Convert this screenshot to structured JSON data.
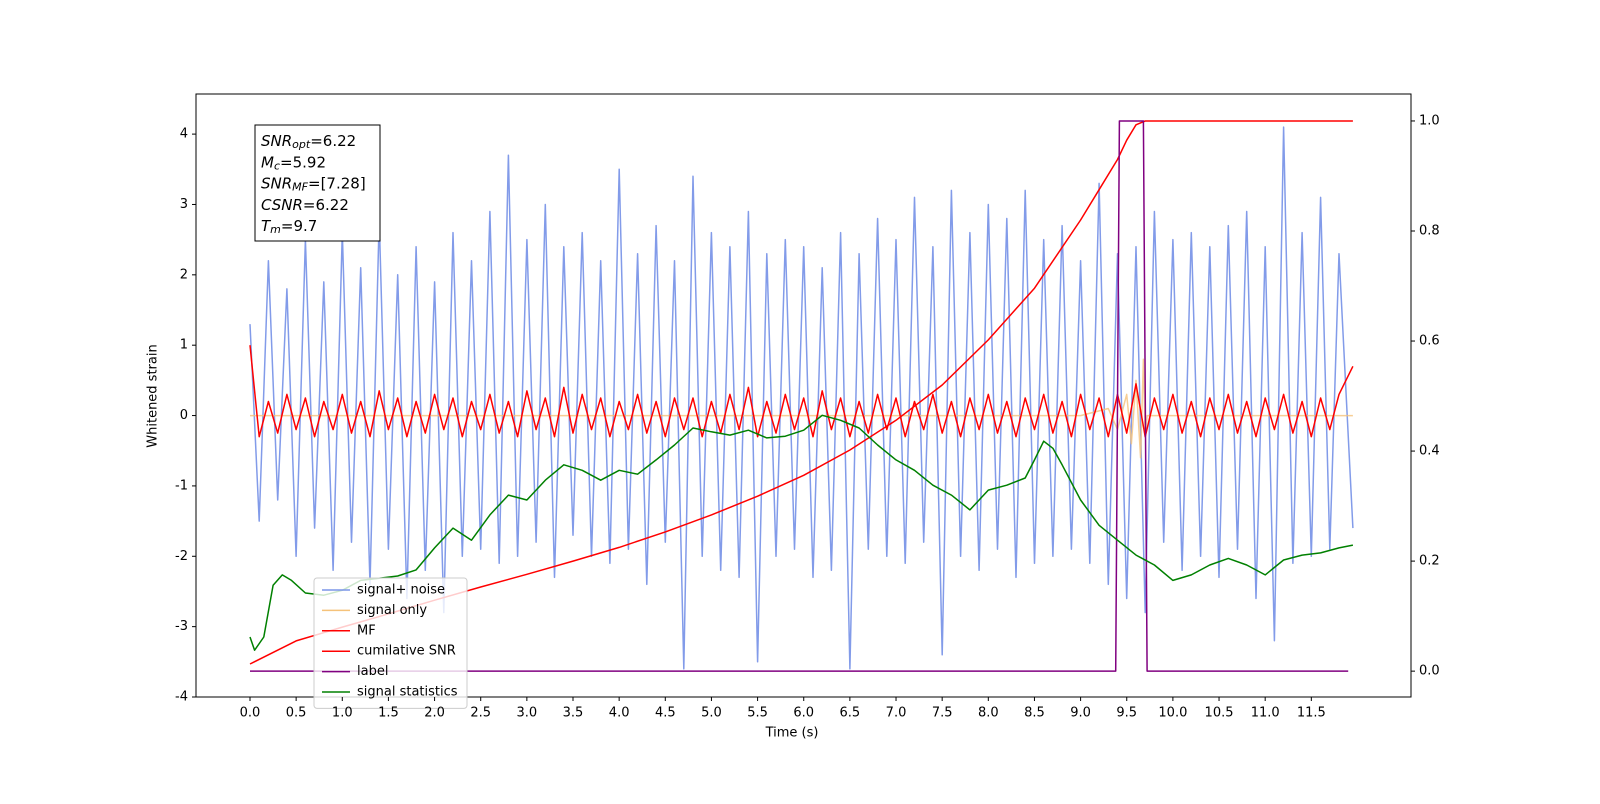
{
  "chart_data": {
    "type": "line",
    "xlabel": "Time (s)",
    "ylabel": "Whitened strain",
    "annotation": [
      {
        "text": "SNR",
        "sub": "opt",
        "rest": "=6.22"
      },
      {
        "text": "M",
        "sub": "c",
        "rest": "=5.92"
      },
      {
        "text": "SNR",
        "sub": "MF",
        "rest": "=[7.28]"
      },
      {
        "text": "CSNR",
        "sub": null,
        "rest": "=6.22"
      },
      {
        "text": "T",
        "sub": "m",
        "rest": "=9.7"
      }
    ],
    "legend": "lower left",
    "xlim": [
      -0.585,
      12.58
    ],
    "ylim": [
      -4.0,
      4.57
    ],
    "y2lim": [
      -0.047,
      1.049
    ],
    "xticks": [
      {
        "value": 0,
        "label": "0.0"
      },
      0.5,
      {
        "value": 1,
        "label": "1.0"
      },
      1.5,
      {
        "value": 2,
        "label": "2.0"
      },
      2.5,
      {
        "value": 3,
        "label": "3.0"
      },
      3.5,
      {
        "value": 4,
        "label": "4.0"
      },
      4.5,
      {
        "value": 5,
        "label": "5.0"
      },
      5.5,
      {
        "value": 6,
        "label": "6.0"
      },
      6.5,
      {
        "value": 7,
        "label": "7.0"
      },
      7.5,
      {
        "value": 8,
        "label": "8.0"
      },
      8.5,
      {
        "value": 9,
        "label": "9.0"
      },
      9.5,
      {
        "value": 10,
        "label": "10.0"
      },
      10.5,
      {
        "value": 11,
        "label": "11.0"
      },
      11.5
    ],
    "yticks": [
      -4,
      -3,
      -2,
      -1,
      0,
      1,
      2,
      3,
      4
    ],
    "y2ticks": [
      {
        "value": 0,
        "label": "0.0"
      },
      0.2,
      0.4,
      0.6,
      0.8,
      {
        "value": 1,
        "label": "1.0"
      }
    ],
    "x": [
      0,
      0.1,
      0.2,
      0.3,
      0.4,
      0.5,
      0.6,
      0.7,
      0.8,
      0.9,
      1,
      1.1,
      1.2,
      1.3,
      1.4,
      1.5,
      1.6,
      1.7,
      1.8,
      1.9,
      2,
      2.1,
      2.2,
      2.3,
      2.4,
      2.5,
      2.6,
      2.7,
      2.8,
      2.9,
      3,
      3.1,
      3.2,
      3.3,
      3.4,
      3.5,
      3.6,
      3.7,
      3.8,
      3.9,
      4,
      4.1,
      4.2,
      4.3,
      4.4,
      4.5,
      4.6,
      4.7,
      4.8,
      4.9,
      5,
      5.1,
      5.2,
      5.3,
      5.4,
      5.5,
      5.6,
      5.7,
      5.8,
      5.9,
      6,
      6.1,
      6.2,
      6.3,
      6.4,
      6.5,
      6.6,
      6.7,
      6.8,
      6.9,
      7,
      7.1,
      7.2,
      7.3,
      7.4,
      7.5,
      7.6,
      7.7,
      7.8,
      7.9,
      8,
      8.1,
      8.2,
      8.3,
      8.4,
      8.5,
      8.6,
      8.7,
      8.8,
      8.9,
      9,
      9.1,
      9.2,
      9.3,
      9.4,
      9.5,
      9.6,
      9.7,
      9.8,
      9.9,
      10,
      10.1,
      10.2,
      10.3,
      10.4,
      10.5,
      10.6,
      10.7,
      10.8,
      10.9,
      11,
      11.1,
      11.2,
      11.3,
      11.4,
      11.5,
      11.6,
      11.7,
      11.8,
      11.95
    ],
    "series": [
      {
        "name": "signal+ noise",
        "color": "#7b96e8",
        "axis": "y",
        "values": [
          1.3,
          -1.5,
          2.2,
          -1.2,
          1.8,
          -2.0,
          2.5,
          -1.6,
          1.9,
          -2.2,
          2.6,
          -1.8,
          2.1,
          -2.4,
          2.8,
          -1.9,
          2.0,
          -2.6,
          2.4,
          -2.2,
          1.9,
          -2.8,
          2.6,
          -2.0,
          2.2,
          -1.9,
          2.9,
          -2.1,
          3.7,
          -2.0,
          2.5,
          -1.8,
          3.0,
          -2.3,
          2.4,
          -1.7,
          2.6,
          -2.0,
          2.2,
          -2.1,
          3.5,
          -1.9,
          2.3,
          -2.4,
          2.7,
          -1.8,
          2.2,
          -3.6,
          3.4,
          -2.0,
          2.6,
          -2.2,
          2.4,
          -2.3,
          2.9,
          -3.5,
          2.3,
          -2.0,
          2.5,
          -1.9,
          2.4,
          -2.3,
          2.1,
          -2.2,
          2.6,
          -3.6,
          2.3,
          -1.9,
          2.8,
          -2.0,
          2.5,
          -2.1,
          3.1,
          -1.8,
          2.4,
          -3.4,
          3.2,
          -2.0,
          2.6,
          -2.2,
          3.0,
          -1.9,
          2.8,
          -2.3,
          3.2,
          -2.1,
          2.5,
          -2.0,
          2.7,
          -1.9,
          2.2,
          -2.1,
          3.3,
          -2.4,
          2.3,
          -2.6,
          2.4,
          -2.8,
          2.9,
          -1.8,
          2.5,
          -2.2,
          2.6,
          -2.0,
          2.4,
          -2.3,
          2.7,
          -1.9,
          2.9,
          -2.6,
          2.4,
          -3.2,
          4.1,
          -2.1,
          2.6,
          -2.0,
          3.1,
          -1.9,
          2.3,
          -1.6
        ]
      },
      {
        "name": "signal only",
        "color": "#f5c27a",
        "axis": "y",
        "x": [
          0,
          9.0,
          9.3,
          9.4,
          9.5,
          9.55,
          9.6,
          9.65,
          9.68,
          9.7,
          9.72,
          11.95
        ],
        "values": [
          0,
          0,
          0.1,
          -0.2,
          0.3,
          -0.4,
          0.5,
          -0.6,
          0.8,
          -0.3,
          0,
          0
        ]
      },
      {
        "name": "MF",
        "color": "#ff0000",
        "axis": "y",
        "values": [
          1.0,
          -0.3,
          0.2,
          -0.25,
          0.3,
          -0.2,
          0.25,
          -0.3,
          0.2,
          -0.2,
          0.3,
          -0.25,
          0.2,
          -0.3,
          0.35,
          -0.2,
          0.25,
          -0.3,
          0.2,
          -0.25,
          0.3,
          -0.2,
          0.25,
          -0.3,
          0.2,
          -0.2,
          0.3,
          -0.25,
          0.2,
          -0.3,
          0.35,
          -0.2,
          0.25,
          -0.3,
          0.4,
          -0.25,
          0.3,
          -0.2,
          0.25,
          -0.3,
          0.2,
          -0.2,
          0.3,
          -0.25,
          0.2,
          -0.3,
          0.25,
          -0.2,
          0.25,
          -0.3,
          0.2,
          -0.25,
          0.3,
          -0.2,
          0.4,
          -0.3,
          0.2,
          -0.25,
          0.3,
          -0.2,
          0.25,
          -0.3,
          0.35,
          -0.2,
          0.25,
          -0.3,
          0.2,
          -0.25,
          0.3,
          -0.2,
          0.25,
          -0.3,
          0.2,
          -0.2,
          0.3,
          -0.25,
          0.2,
          -0.3,
          0.25,
          -0.2,
          0.3,
          -0.25,
          0.2,
          -0.3,
          0.25,
          -0.2,
          0.3,
          -0.25,
          0.2,
          -0.3,
          0.3,
          -0.2,
          0.25,
          -0.3,
          0.3,
          -0.25,
          0.45,
          -0.3,
          0.25,
          -0.2,
          0.3,
          -0.25,
          0.2,
          -0.3,
          0.25,
          -0.2,
          0.3,
          -0.25,
          0.2,
          -0.3,
          0.25,
          -0.2,
          0.3,
          -0.25,
          0.2,
          -0.3,
          0.25,
          -0.2,
          0.3,
          0.7
        ]
      },
      {
        "name": "cumilative SNR",
        "color": "#ff0000",
        "axis": "y2",
        "x": [
          0,
          0.5,
          1,
          1.5,
          2,
          2.5,
          3,
          3.5,
          4,
          4.5,
          5,
          5.5,
          6,
          6.5,
          7,
          7.5,
          8,
          8.5,
          9,
          9.2,
          9.4,
          9.5,
          9.6,
          9.7,
          11.95
        ],
        "values": [
          0.013,
          0.055,
          0.08,
          0.104,
          0.129,
          0.153,
          0.176,
          0.2,
          0.225,
          0.253,
          0.284,
          0.318,
          0.356,
          0.402,
          0.456,
          0.52,
          0.602,
          0.696,
          0.82,
          0.875,
          0.93,
          0.965,
          0.993,
          1.0,
          1.0
        ]
      },
      {
        "name": "label",
        "color": "#800080",
        "axis": "y2",
        "x": [
          0,
          9.38,
          9.42,
          9.68,
          9.72,
          11.9
        ],
        "values": [
          0,
          0,
          1,
          1,
          0,
          0
        ]
      },
      {
        "name": "signal statistics",
        "color": "#008000",
        "axis": "y2",
        "x": [
          0,
          0.05,
          0.15,
          0.25,
          0.35,
          0.45,
          0.6,
          0.8,
          1.0,
          1.2,
          1.4,
          1.6,
          1.8,
          2.0,
          2.2,
          2.4,
          2.6,
          2.8,
          3.0,
          3.2,
          3.4,
          3.6,
          3.8,
          4.0,
          4.2,
          4.4,
          4.6,
          4.8,
          5.0,
          5.2,
          5.4,
          5.6,
          5.8,
          6.0,
          6.2,
          6.4,
          6.6,
          6.8,
          7.0,
          7.2,
          7.4,
          7.6,
          7.8,
          8.0,
          8.2,
          8.4,
          8.5,
          8.6,
          8.7,
          8.8,
          9.0,
          9.2,
          9.4,
          9.6,
          9.8,
          10.0,
          10.2,
          10.4,
          10.6,
          10.8,
          11.0,
          11.2,
          11.4,
          11.6,
          11.8,
          11.95
        ],
        "values": [
          0.062,
          0.038,
          0.062,
          0.156,
          0.175,
          0.165,
          0.142,
          0.138,
          0.147,
          0.165,
          0.169,
          0.173,
          0.184,
          0.224,
          0.26,
          0.238,
          0.284,
          0.32,
          0.311,
          0.347,
          0.375,
          0.365,
          0.347,
          0.365,
          0.358,
          0.384,
          0.411,
          0.442,
          0.435,
          0.429,
          0.438,
          0.424,
          0.427,
          0.438,
          0.465,
          0.456,
          0.442,
          0.411,
          0.384,
          0.365,
          0.338,
          0.32,
          0.293,
          0.329,
          0.338,
          0.351,
          0.384,
          0.418,
          0.405,
          0.375,
          0.311,
          0.265,
          0.238,
          0.211,
          0.193,
          0.165,
          0.175,
          0.193,
          0.205,
          0.193,
          0.175,
          0.202,
          0.211,
          0.215,
          0.224,
          0.229
        ]
      }
    ]
  }
}
